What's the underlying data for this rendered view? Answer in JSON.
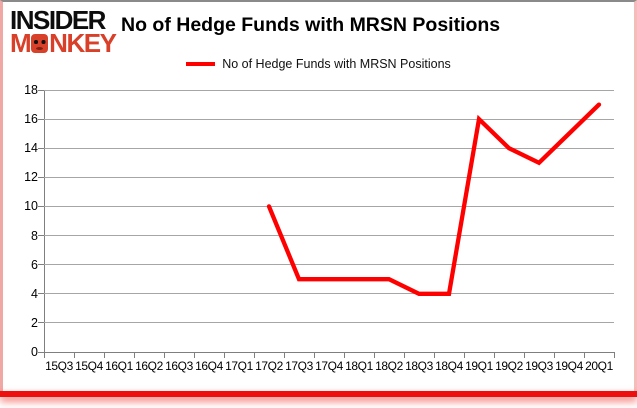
{
  "logo": {
    "line1": "INSIDER",
    "line2": "MONKEY"
  },
  "header": {
    "title": "No of Hedge Funds with MRSN Positions"
  },
  "legend": {
    "label": "No of Hedge Funds with MRSN Positions"
  },
  "colors": {
    "series_line": "#ff0000",
    "logo_red": "#d8402a",
    "gridline": "#a6a6a6",
    "axis": "#7f7f7f",
    "bottom_bar": "#ee0f0f",
    "border_top": "#8a8a8a",
    "border_sides": "#f0a8a4"
  },
  "chart_data": {
    "type": "line",
    "title": "No of Hedge Funds with MRSN Positions",
    "categories": [
      "15Q3",
      "15Q4",
      "16Q1",
      "16Q2",
      "16Q3",
      "16Q4",
      "17Q1",
      "17Q2",
      "17Q3",
      "17Q4",
      "18Q1",
      "18Q2",
      "18Q3",
      "18Q4",
      "19Q1",
      "19Q2",
      "19Q3",
      "19Q4",
      "20Q1"
    ],
    "series": [
      {
        "name": "No of Hedge Funds with MRSN Positions",
        "color": "#ff0000",
        "values": [
          null,
          null,
          null,
          null,
          null,
          null,
          null,
          10,
          5,
          5,
          5,
          5,
          4,
          4,
          16,
          14,
          13,
          15,
          17
        ]
      }
    ],
    "xlabel": "",
    "ylabel": "",
    "ylim": [
      0,
      18
    ],
    "ytick_step": 2,
    "grid": true,
    "legend_position": "top-center"
  }
}
